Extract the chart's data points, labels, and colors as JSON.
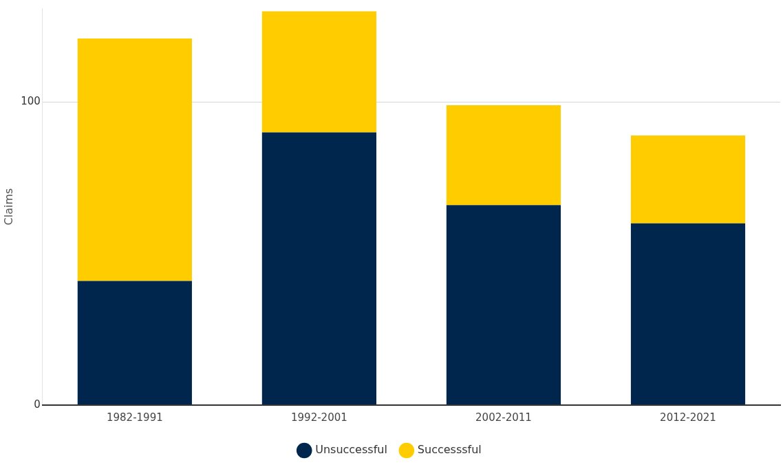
{
  "chart_data": {
    "type": "bar",
    "stacked": true,
    "ylabel": "Claims",
    "categories": [
      "1982-1991",
      "1992-2001",
      "2002-2011",
      "2012-2021"
    ],
    "series": [
      {
        "name": "Unsuccessful",
        "color": "#00264d",
        "values": [
          41,
          90,
          66,
          60
        ]
      },
      {
        "name": "Successsful",
        "color": "#ffcc00",
        "values": [
          80,
          40,
          33,
          29
        ]
      }
    ],
    "ylim": [
      0,
      131
    ],
    "yticks": [
      0,
      100
    ],
    "grid": "y",
    "legend": "bottom",
    "marker": "circle"
  }
}
